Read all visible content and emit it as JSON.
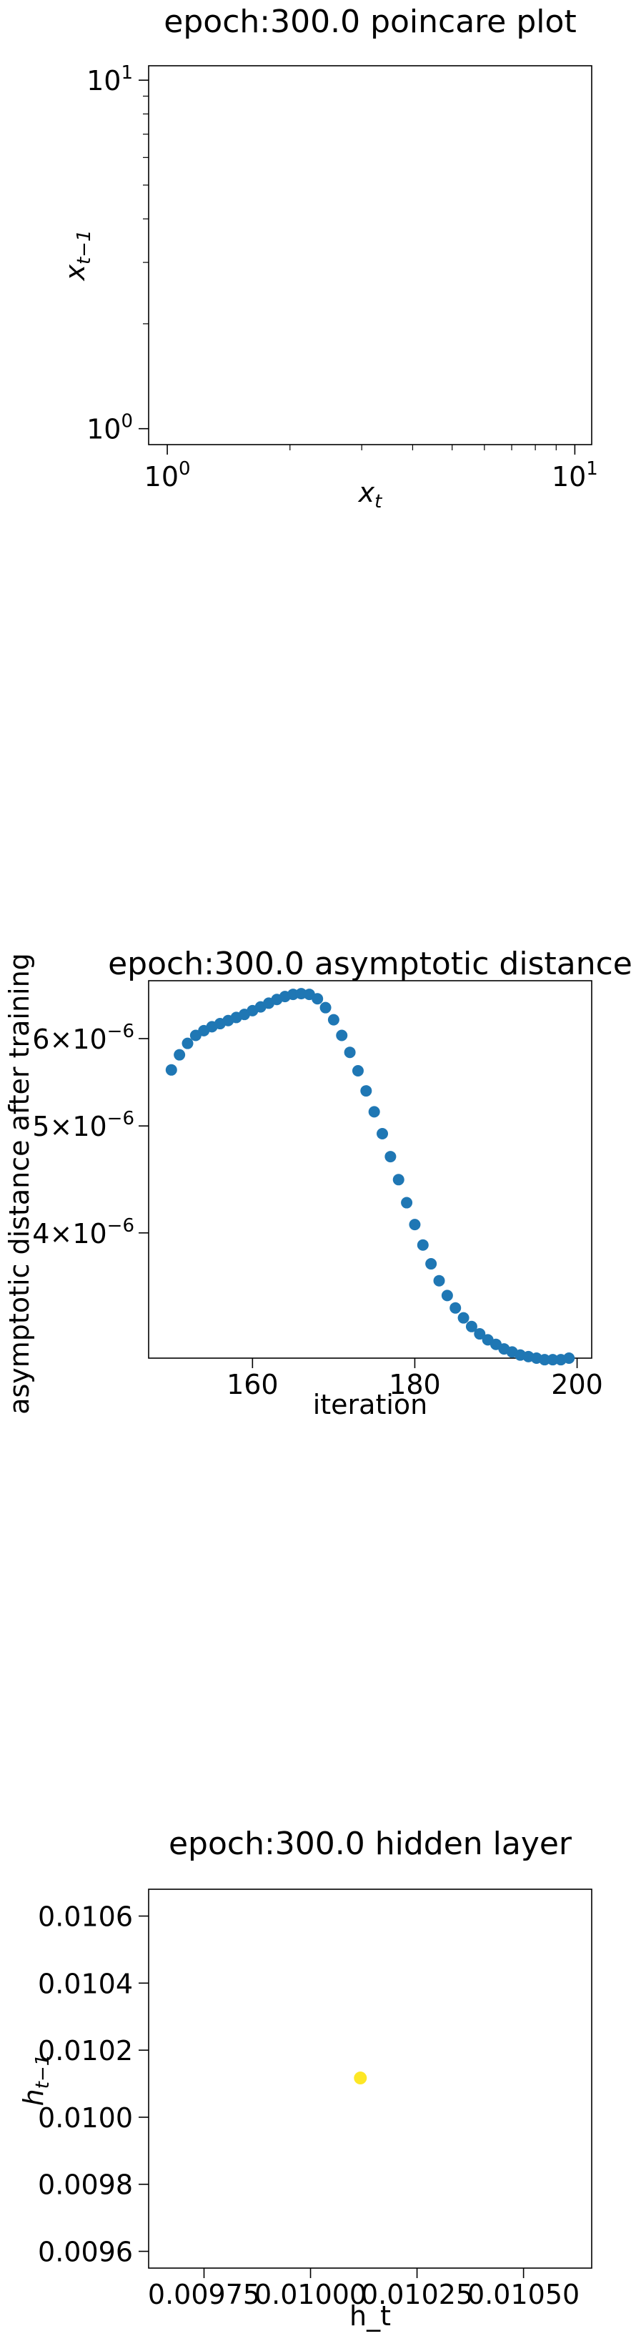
{
  "chart_data": [
    {
      "type": "scatter",
      "title": "epoch:300.0 poincare plot",
      "xlabel": "x_t",
      "ylabel": "x_{t-1}",
      "xscale": "log",
      "yscale": "log",
      "xlim": [
        0.9,
        11
      ],
      "ylim": [
        0.9,
        11
      ],
      "xticks": [
        {
          "value": 1,
          "label": "10",
          "exp": "0"
        },
        {
          "value": 10,
          "label": "10",
          "exp": "1"
        }
      ],
      "yticks": [
        {
          "value": 1,
          "label": "10",
          "exp": "0"
        },
        {
          "value": 10,
          "label": "10",
          "exp": "1"
        }
      ],
      "points": []
    },
    {
      "type": "scatter",
      "title": "epoch:300.0 asymptotic distance",
      "xlabel": "iteration",
      "ylabel": "asymptotic distance after training",
      "yscale": "log",
      "xlim": [
        147.2,
        201.8
      ],
      "ylim": [
        3.08e-06,
        6.77e-06
      ],
      "marker_color": "#1f77b4",
      "xticks": [
        160,
        180,
        200
      ],
      "yticks": [
        {
          "value": 6e-06,
          "label": "6×10",
          "exp": "−6"
        },
        {
          "value": 5e-06,
          "label": "5×10",
          "exp": "−6"
        },
        {
          "value": 4e-06,
          "label": "4×10",
          "exp": "−6"
        }
      ],
      "x": [
        150,
        151,
        152,
        153,
        154,
        155,
        156,
        157,
        158,
        159,
        160,
        161,
        162,
        163,
        164,
        165,
        166,
        167,
        168,
        169,
        170,
        171,
        172,
        173,
        174,
        175,
        176,
        177,
        178,
        179,
        180,
        181,
        182,
        183,
        184,
        185,
        186,
        187,
        188,
        189,
        190,
        191,
        192,
        193,
        194,
        195,
        196,
        197,
        198,
        199
      ],
      "y": [
        5.62e-06,
        5.8e-06,
        5.94e-06,
        6.04e-06,
        6.1e-06,
        6.15e-06,
        6.19e-06,
        6.23e-06,
        6.27e-06,
        6.31e-06,
        6.36e-06,
        6.41e-06,
        6.46e-06,
        6.51e-06,
        6.55e-06,
        6.58e-06,
        6.59e-06,
        6.58e-06,
        6.52e-06,
        6.4e-06,
        6.24e-06,
        6.04e-06,
        5.83e-06,
        5.61e-06,
        5.38e-06,
        5.15e-06,
        4.92e-06,
        4.69e-06,
        4.47e-06,
        4.26e-06,
        4.07e-06,
        3.9e-06,
        3.75e-06,
        3.62e-06,
        3.51e-06,
        3.42e-06,
        3.35e-06,
        3.29e-06,
        3.24e-06,
        3.2e-06,
        3.17e-06,
        3.14e-06,
        3.12e-06,
        3.1e-06,
        3.09e-06,
        3.08e-06,
        3.07e-06,
        3.07e-06,
        3.07e-06,
        3.08e-06
      ]
    },
    {
      "type": "scatter",
      "title": "epoch:300.0 hidden layer",
      "xlabel": "h_t",
      "ylabel": "h_{t-1}",
      "xlim": [
        0.00962,
        0.01066
      ],
      "ylim": [
        0.00955,
        0.01068
      ],
      "marker_color": "#fde725",
      "xticks": [
        "0.00975",
        "0.01000",
        "0.01025",
        "0.01050"
      ],
      "yticks": [
        "0.0106",
        "0.0104",
        "0.0102",
        "0.0100",
        "0.0098",
        "0.0096"
      ],
      "points": [
        {
          "x": 0.010117,
          "y": 0.010117
        }
      ]
    }
  ]
}
